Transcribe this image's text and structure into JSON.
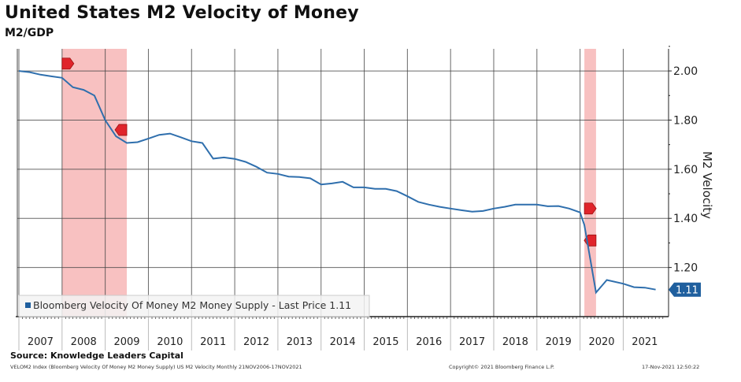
{
  "title": "United States M2 Velocity of Money",
  "subtitle": "M2/GDP",
  "source": "Source: Knowledge Leaders Capital",
  "footer": {
    "description": "VELOM2 Index (Bloomberg Velocity Of Money M2 Money Supply) US M2 Velocity  Monthly 21NOV2006-17NOV2021",
    "copyright": "Copyright© 2021 Bloomberg Finance L.P.",
    "timestamp": "17-Nov-2021 12:50:22"
  },
  "colors": {
    "line": "#2f6fad",
    "recession": "#f4a0a0",
    "flag": "#e0242b",
    "last_price_tag": "#1f5f9e"
  },
  "chart_data": {
    "type": "line",
    "title": "United States M2 Velocity of Money",
    "subtitle": "M2/GDP",
    "xlabel": "",
    "ylabel": "M2 Velocity",
    "xlim": [
      2007,
      2022.05
    ],
    "ylim": [
      1.0,
      2.09
    ],
    "grid": true,
    "y_axis_side": "right",
    "legend_position": "bottom-left",
    "x_ticks": [
      "2007",
      "2008",
      "2009",
      "2010",
      "2011",
      "2012",
      "2013",
      "2014",
      "2015",
      "2016",
      "2017",
      "2018",
      "2019",
      "2020",
      "2021"
    ],
    "y_ticks": [
      "1.20",
      "1.40",
      "1.60",
      "1.80",
      "2.00"
    ],
    "y_tick_values": [
      1.2,
      1.4,
      1.6,
      1.8,
      2.0
    ],
    "recessions": [
      [
        2008.0,
        2009.5
      ],
      [
        2020.1,
        2020.37
      ]
    ],
    "event_flags": [
      {
        "x": 2008.0,
        "y": 2.03,
        "direction": "right"
      },
      {
        "x": 2009.5,
        "y": 1.76,
        "direction": "left"
      },
      {
        "x": 2020.1,
        "y": 1.44,
        "direction": "right"
      },
      {
        "x": 2020.37,
        "y": 1.31,
        "direction": "left"
      }
    ],
    "last_price_label": "1.11",
    "series": [
      {
        "name": "Bloomberg Velocity Of Money M2 Money Supply - Last Price 1.11",
        "x": [
          2007.0,
          2007.25,
          2007.5,
          2007.75,
          2008.0,
          2008.25,
          2008.5,
          2008.75,
          2009.0,
          2009.25,
          2009.5,
          2009.75,
          2010.0,
          2010.25,
          2010.5,
          2010.75,
          2011.0,
          2011.25,
          2011.5,
          2011.75,
          2012.0,
          2012.25,
          2012.5,
          2012.75,
          2013.0,
          2013.25,
          2013.5,
          2013.75,
          2014.0,
          2014.25,
          2014.5,
          2014.75,
          2015.0,
          2015.25,
          2015.5,
          2015.75,
          2016.0,
          2016.25,
          2016.5,
          2016.75,
          2017.0,
          2017.25,
          2017.5,
          2017.75,
          2018.0,
          2018.25,
          2018.5,
          2018.75,
          2019.0,
          2019.25,
          2019.5,
          2019.75,
          2020.0,
          2020.1,
          2020.37,
          2020.62,
          2021.0,
          2021.25,
          2021.5,
          2021.75
        ],
        "values": [
          2.0,
          1.995,
          1.985,
          1.978,
          1.972,
          1.934,
          1.923,
          1.9,
          1.8,
          1.734,
          1.707,
          1.71,
          1.725,
          1.74,
          1.745,
          1.73,
          1.714,
          1.707,
          1.643,
          1.648,
          1.642,
          1.63,
          1.61,
          1.586,
          1.581,
          1.57,
          1.568,
          1.563,
          1.538,
          1.542,
          1.549,
          1.526,
          1.526,
          1.52,
          1.52,
          1.511,
          1.49,
          1.467,
          1.456,
          1.447,
          1.44,
          1.433,
          1.427,
          1.43,
          1.44,
          1.447,
          1.456,
          1.456,
          1.456,
          1.449,
          1.45,
          1.44,
          1.424,
          1.373,
          1.098,
          1.149,
          1.134,
          1.12,
          1.118,
          1.11
        ]
      }
    ]
  }
}
